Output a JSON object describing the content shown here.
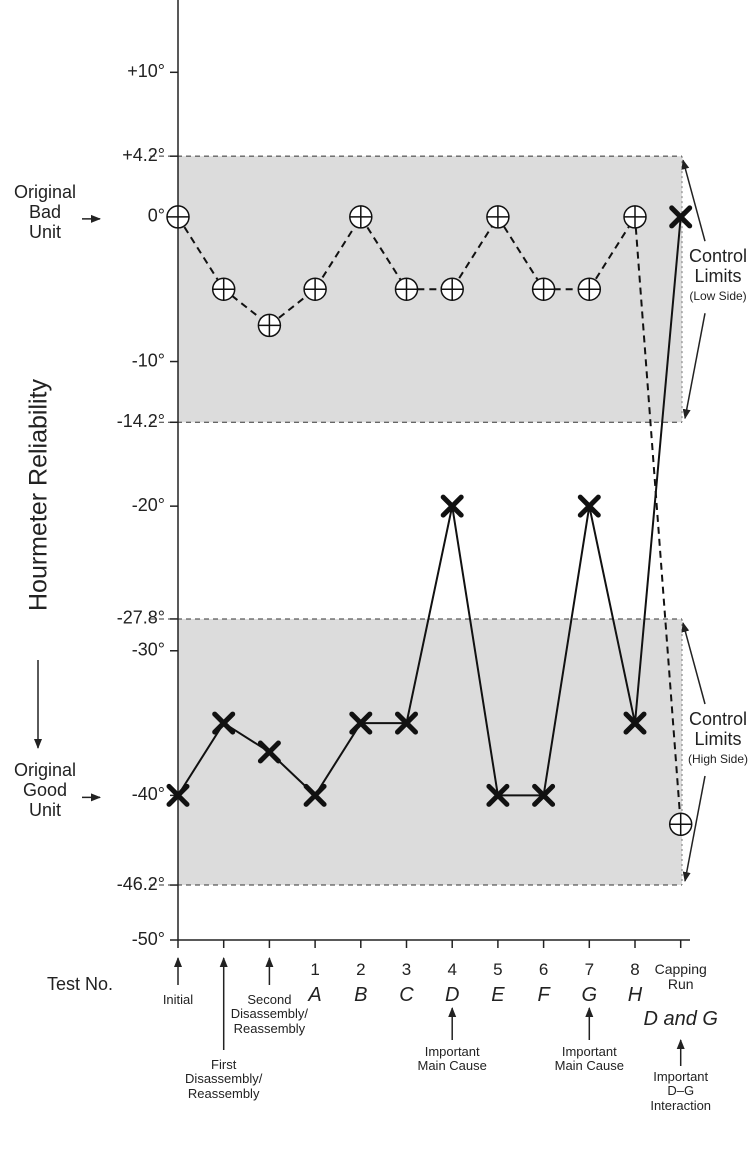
{
  "chart_data": {
    "type": "line",
    "y_label": "Hourmeter Reliability",
    "x_label": "Test No.",
    "categories": [
      "Initial",
      "First\nDisassembly/\nReassembly",
      "Second\nDisassembly/\nReassembly",
      "1",
      "2",
      "3",
      "4",
      "5",
      "6",
      "7",
      "8",
      "Capping\nRun"
    ],
    "sub_labels": [
      null,
      null,
      null,
      "A",
      "B",
      "C",
      "D",
      "E",
      "F",
      "G",
      "H",
      "D and G"
    ],
    "annotations": [
      null,
      null,
      null,
      null,
      null,
      null,
      "Important\nMain Cause",
      null,
      null,
      "Important\nMain Cause",
      null,
      "Important\nD–G\nInteraction"
    ],
    "series": [
      {
        "name": "Original\nBad\nUnit",
        "color": "#111111",
        "marker": "circle-plus",
        "dash": true,
        "values": [
          0,
          -5,
          -7.5,
          -5,
          0,
          -5,
          -5,
          0,
          -5,
          -5,
          0,
          -42
        ]
      },
      {
        "name": "Original\nGood\nUnit",
        "color": "#111111",
        "marker": "x",
        "dash": false,
        "values": [
          -40,
          -35,
          -37,
          -40,
          -35,
          -35,
          -20,
          -40,
          -40,
          -20,
          -35,
          0
        ]
      }
    ],
    "bands": [
      {
        "label": "Control\nLimits",
        "sublabel": "(Low Side)",
        "from": 4.2,
        "to": -14.2,
        "color": "#dcdcdc"
      },
      {
        "label": "Control\nLimits",
        "sublabel": "(High Side)",
        "from": -27.8,
        "to": -46.2,
        "color": "#dcdcdc"
      }
    ],
    "ylim": [
      -50,
      15
    ],
    "yticks": [
      {
        "value": 10,
        "label": "+10°"
      },
      {
        "value": 4.2,
        "label": "+4.2°"
      },
      {
        "value": 0,
        "label": "0°"
      },
      {
        "value": -10,
        "label": "-10°"
      },
      {
        "value": -14.2,
        "label": "-14.2°"
      },
      {
        "value": -20,
        "label": "-20°"
      },
      {
        "value": -27.8,
        "label": "-27.8°"
      },
      {
        "value": -30,
        "label": "-30°"
      },
      {
        "value": -40,
        "label": "-40°"
      },
      {
        "value": -46.2,
        "label": "-46.2°"
      },
      {
        "value": -50,
        "label": "-50°"
      }
    ]
  }
}
